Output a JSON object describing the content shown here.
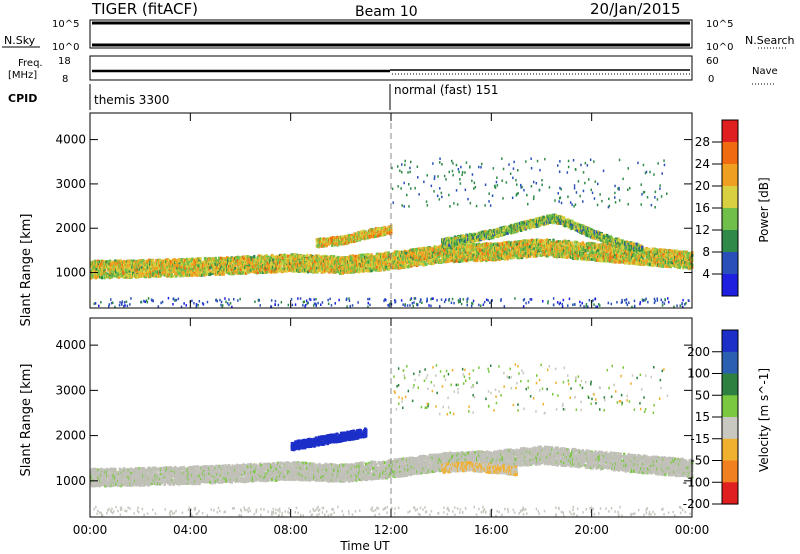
{
  "header": {
    "title": "TIGER (fitACF)",
    "beam": "Beam 10",
    "date": "20/Jan/2015"
  },
  "top_panels": {
    "nsky_label": "N.Sky",
    "nsearch_label": "N.Search",
    "freq_label_1": "Freq.",
    "freq_label_2": "[MHz]",
    "nave_label": "Nave",
    "cpid_label": "CPID",
    "nsky_ticks": [
      "10^5",
      "10^0"
    ],
    "nsearch_ticks": [
      "10^5",
      "10^0"
    ],
    "freq_ticks": [
      "18",
      "8"
    ],
    "nave_ticks": [
      "60",
      "0"
    ]
  },
  "cpid": [
    {
      "name": "themis 3300",
      "start_hour": 0
    },
    {
      "name": "normal (fast) 151",
      "start_hour": 12
    }
  ],
  "colors": {
    "power": [
      "#1f1fe0",
      "#2a4fb8",
      "#2f8a4a",
      "#6fbf4a",
      "#d8d040",
      "#f0a020",
      "#f06a10",
      "#e02020"
    ],
    "velocity": [
      "#1c2fc8",
      "#2b5fb0",
      "#2d8040",
      "#7ac840",
      "#c8c8c0",
      "#f0b030",
      "#f08020",
      "#e02020"
    ],
    "ground": "#c0c0b8"
  },
  "chart_data": [
    {
      "type": "heatmap",
      "title": "Power",
      "xlabel": "Time UT",
      "ylabel": "Slant Range [km]",
      "xlim": [
        0,
        24
      ],
      "ylim": [
        200,
        4600
      ],
      "x_ticks": [
        "00:00",
        "04:00",
        "08:00",
        "12:00",
        "16:00",
        "20:00",
        "00:00"
      ],
      "y_ticks": [
        "1000",
        "2000",
        "3000",
        "4000"
      ],
      "colorbar_label": "Power [dB]",
      "colorbar_ticks": [
        "4",
        "8",
        "12",
        "16",
        "20",
        "24",
        "28"
      ],
      "colorbar_range": [
        0,
        32
      ],
      "scatter_bands": [
        {
          "x": [
            0,
            2,
            4,
            6,
            8,
            10,
            12,
            14,
            16,
            18,
            20,
            22,
            24
          ],
          "y": [
            1100,
            1120,
            1150,
            1200,
            1250,
            1200,
            1300,
            1450,
            1500,
            1600,
            1500,
            1400,
            1300
          ],
          "value": 18
        },
        {
          "x": [
            14,
            15,
            16,
            17,
            18,
            18.5,
            19,
            20,
            21,
            22
          ],
          "y": [
            1700,
            1800,
            1900,
            2050,
            2200,
            2250,
            2150,
            1900,
            1700,
            1550
          ],
          "value": 14
        },
        {
          "x": [
            9,
            10,
            11,
            12
          ],
          "y": [
            1700,
            1750,
            1900,
            2000
          ],
          "value": 20
        }
      ]
    },
    {
      "type": "heatmap",
      "title": "Velocity",
      "xlabel": "Time UT",
      "ylabel": "Slant Range [km]",
      "xlim": [
        0,
        24
      ],
      "ylim": [
        200,
        4600
      ],
      "x_ticks": [
        "00:00",
        "04:00",
        "08:00",
        "12:00",
        "16:00",
        "20:00",
        "00:00"
      ],
      "y_ticks": [
        "1000",
        "2000",
        "3000",
        "4000"
      ],
      "colorbar_label": "Velocity [m s^-1]",
      "colorbar_ticks": [
        "200",
        "100",
        "50",
        "15",
        "-15",
        "-50",
        "-100",
        "-200"
      ],
      "colorbar_range": [
        -250,
        250
      ],
      "scatter_bands": [
        {
          "x": [
            0,
            2,
            4,
            6,
            8,
            10,
            12,
            14,
            16,
            18,
            20,
            22,
            24
          ],
          "y": [
            1100,
            1120,
            1150,
            1200,
            1250,
            1200,
            1300,
            1450,
            1500,
            1600,
            1500,
            1400,
            1300
          ],
          "value": 0
        },
        {
          "x": [
            8,
            9,
            10,
            11
          ],
          "y": [
            1800,
            1900,
            2000,
            2100
          ],
          "value": 220
        },
        {
          "x": [
            14,
            15,
            16,
            17
          ],
          "y": [
            1300,
            1350,
            1300,
            1250
          ],
          "value": -60
        }
      ]
    }
  ]
}
